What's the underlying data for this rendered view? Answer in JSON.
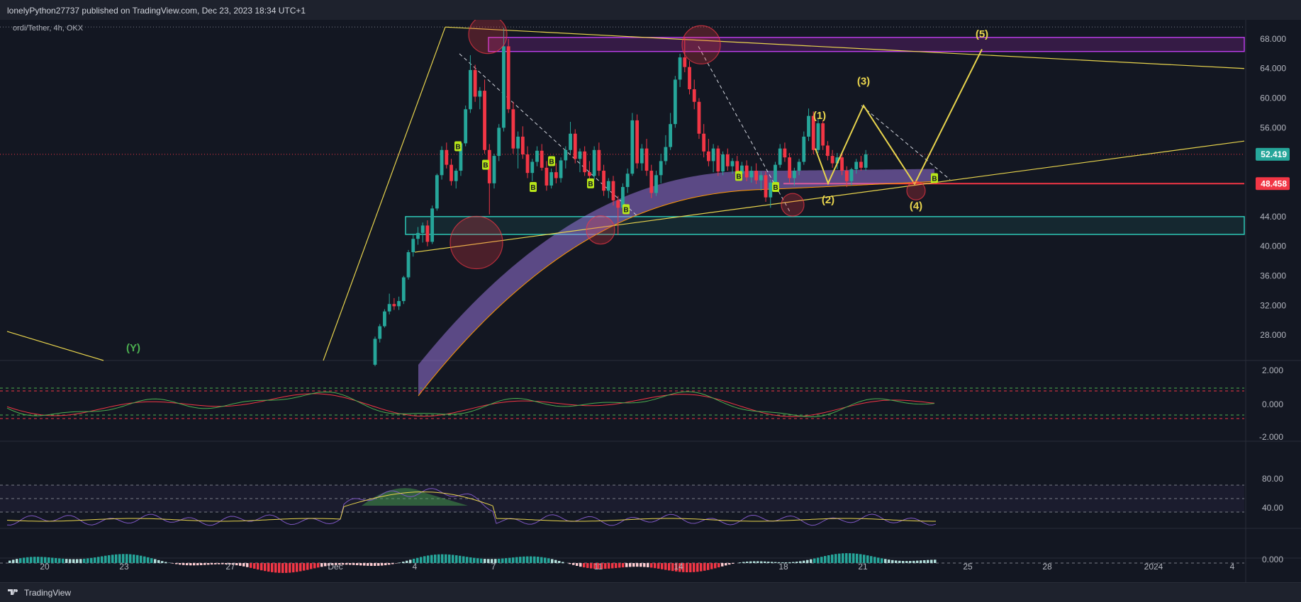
{
  "header": {
    "publish_text": "lonelyPython27737 published on TradingView.com, Dec 23, 2023 18:34 UTC+1"
  },
  "symbol": {
    "label": "ordi/Tether, 4h, OKX"
  },
  "footer": {
    "brand": "TradingView"
  },
  "colors": {
    "bull": "#26a69a",
    "bear": "#f23645",
    "fib": "#e8d44d",
    "magenta": "#c13ff0",
    "cyan": "#2fd3c0",
    "bg": "#131722"
  },
  "chart_data": {
    "type": "candlestick",
    "title": "ordi/Tether, 4h, OKX",
    "price_axis": {
      "ticks": [
        "68.000",
        "64.000",
        "60.000",
        "56.000",
        "52.000",
        "48.000",
        "44.000",
        "40.000",
        "36.000",
        "32.000",
        "28.000"
      ],
      "range": [
        24,
        70
      ]
    },
    "time_axis": {
      "ticks": [
        "20",
        "23",
        "27",
        "Dec",
        "4",
        "7",
        "11",
        "14",
        "18",
        "21",
        "25",
        "28",
        "2024",
        "4"
      ]
    },
    "current_price": "52.419",
    "support_level": "48.458",
    "zones": [
      {
        "name": "resistance-zone",
        "from": 66.3,
        "to": 68.2
      },
      {
        "name": "support-zone",
        "from": 41.6,
        "to": 44.0
      }
    ],
    "wave_labels": [
      "(1)",
      "(2)",
      "(3)",
      "(4)",
      "(5)",
      "(Y)"
    ],
    "candles": [
      {
        "t": "Dec 3 08",
        "o": 24.0,
        "h": 27.8,
        "l": 23.8,
        "c": 27.5
      },
      {
        "t": "Dec 3 12",
        "o": 27.5,
        "h": 29.5,
        "l": 27.0,
        "c": 29.2
      },
      {
        "t": "Dec 3 16",
        "o": 29.2,
        "h": 31.5,
        "l": 29.0,
        "c": 31.2
      },
      {
        "t": "Dec 3 20",
        "o": 31.2,
        "h": 33.6,
        "l": 30.8,
        "c": 32.2
      },
      {
        "t": "Dec 4 00",
        "o": 32.2,
        "h": 33.0,
        "l": 31.4,
        "c": 31.9
      },
      {
        "t": "Dec 4 04",
        "o": 31.9,
        "h": 33.2,
        "l": 31.4,
        "c": 32.6
      },
      {
        "t": "Dec 4 08",
        "o": 32.6,
        "h": 36.0,
        "l": 32.2,
        "c": 35.8
      },
      {
        "t": "Dec 4 12",
        "o": 35.8,
        "h": 39.5,
        "l": 35.5,
        "c": 39.2
      },
      {
        "t": "Dec 4 16",
        "o": 39.2,
        "h": 41.6,
        "l": 38.6,
        "c": 41.0
      },
      {
        "t": "Dec 4 20",
        "o": 41.0,
        "h": 42.6,
        "l": 40.2,
        "c": 41.8
      },
      {
        "t": "Dec 5 00",
        "o": 41.8,
        "h": 43.2,
        "l": 40.5,
        "c": 42.8
      },
      {
        "t": "Dec 5 04",
        "o": 42.8,
        "h": 43.5,
        "l": 40.0,
        "c": 40.6
      },
      {
        "t": "Dec 5 08",
        "o": 40.6,
        "h": 45.5,
        "l": 40.3,
        "c": 45.1
      },
      {
        "t": "Dec 5 12",
        "o": 45.1,
        "h": 49.8,
        "l": 44.8,
        "c": 49.6
      },
      {
        "t": "Dec 5 16",
        "o": 49.6,
        "h": 53.5,
        "l": 49.0,
        "c": 53.0
      },
      {
        "t": "Dec 5 20",
        "o": 53.0,
        "h": 54.0,
        "l": 50.5,
        "c": 51.0
      },
      {
        "t": "Dec 6 00",
        "o": 51.0,
        "h": 51.8,
        "l": 48.2,
        "c": 48.8
      },
      {
        "t": "Dec 6 04",
        "o": 48.8,
        "h": 50.5,
        "l": 47.8,
        "c": 50.2
      },
      {
        "t": "Dec 6 08",
        "o": 50.2,
        "h": 54.2,
        "l": 49.5,
        "c": 53.9
      },
      {
        "t": "Dec 6 12",
        "o": 53.9,
        "h": 59.0,
        "l": 53.5,
        "c": 58.5
      },
      {
        "t": "Dec 6 16",
        "o": 58.5,
        "h": 65.8,
        "l": 58.0,
        "c": 63.8
      },
      {
        "t": "Dec 6 20",
        "o": 63.8,
        "h": 64.5,
        "l": 59.5,
        "c": 60.2
      },
      {
        "t": "Dec 7 00",
        "o": 60.2,
        "h": 61.5,
        "l": 58.5,
        "c": 61.0
      },
      {
        "t": "Dec 7 04",
        "o": 61.0,
        "h": 62.5,
        "l": 52.5,
        "c": 53.0
      },
      {
        "t": "Dec 7 08",
        "o": 53.0,
        "h": 53.8,
        "l": 44.3,
        "c": 48.5
      },
      {
        "t": "Dec 7 12",
        "o": 48.5,
        "h": 52.5,
        "l": 47.8,
        "c": 52.2
      },
      {
        "t": "Dec 7 16",
        "o": 52.2,
        "h": 56.5,
        "l": 51.5,
        "c": 56.0
      },
      {
        "t": "Dec 7 20",
        "o": 56.0,
        "h": 69.5,
        "l": 55.5,
        "c": 67.0
      },
      {
        "t": "Dec 8 00",
        "o": 67.0,
        "h": 68.0,
        "l": 58.0,
        "c": 58.5
      },
      {
        "t": "Dec 8 04",
        "o": 58.5,
        "h": 59.5,
        "l": 52.5,
        "c": 53.2
      },
      {
        "t": "Dec 8 08",
        "o": 53.2,
        "h": 55.5,
        "l": 50.5,
        "c": 54.8
      },
      {
        "t": "Dec 8 12",
        "o": 54.8,
        "h": 56.2,
        "l": 51.8,
        "c": 52.4
      },
      {
        "t": "Dec 8 16",
        "o": 52.4,
        "h": 53.5,
        "l": 49.2,
        "c": 49.9
      },
      {
        "t": "Dec 8 20",
        "o": 49.9,
        "h": 51.8,
        "l": 48.8,
        "c": 51.4
      },
      {
        "t": "Dec 9 00",
        "o": 51.4,
        "h": 53.5,
        "l": 50.8,
        "c": 52.9
      },
      {
        "t": "Dec 9 04",
        "o": 52.9,
        "h": 53.8,
        "l": 50.2,
        "c": 50.6
      },
      {
        "t": "Dec 9 08",
        "o": 50.6,
        "h": 51.5,
        "l": 47.5,
        "c": 48.2
      },
      {
        "t": "Dec 9 12",
        "o": 48.2,
        "h": 50.5,
        "l": 47.8,
        "c": 50.0
      },
      {
        "t": "Dec 9 16",
        "o": 50.0,
        "h": 51.2,
        "l": 48.5,
        "c": 49.2
      },
      {
        "t": "Dec 9 20",
        "o": 49.2,
        "h": 52.0,
        "l": 48.6,
        "c": 51.6
      },
      {
        "t": "Dec 10 00",
        "o": 51.6,
        "h": 53.5,
        "l": 50.5,
        "c": 53.0
      },
      {
        "t": "Dec 10 04",
        "o": 53.0,
        "h": 56.8,
        "l": 52.5,
        "c": 55.2
      },
      {
        "t": "Dec 10 08",
        "o": 55.2,
        "h": 55.8,
        "l": 51.2,
        "c": 51.8
      },
      {
        "t": "Dec 10 12",
        "o": 51.8,
        "h": 53.2,
        "l": 50.0,
        "c": 52.8
      },
      {
        "t": "Dec 10 16",
        "o": 52.8,
        "h": 53.5,
        "l": 49.5,
        "c": 50.0
      },
      {
        "t": "Dec 10 20",
        "o": 50.0,
        "h": 51.5,
        "l": 48.5,
        "c": 49.5
      },
      {
        "t": "Dec 11 00",
        "o": 49.5,
        "h": 53.5,
        "l": 49.0,
        "c": 53.0
      },
      {
        "t": "Dec 11 04",
        "o": 53.0,
        "h": 54.0,
        "l": 49.5,
        "c": 50.2
      },
      {
        "t": "Dec 11 08",
        "o": 50.2,
        "h": 51.0,
        "l": 46.8,
        "c": 47.5
      },
      {
        "t": "Dec 11 12",
        "o": 47.5,
        "h": 49.2,
        "l": 46.5,
        "c": 48.8
      },
      {
        "t": "Dec 11 16",
        "o": 48.8,
        "h": 49.5,
        "l": 45.5,
        "c": 46.2
      },
      {
        "t": "Dec 11 20",
        "o": 46.2,
        "h": 46.8,
        "l": 41.5,
        "c": 45.2
      },
      {
        "t": "Dec 12 00",
        "o": 45.2,
        "h": 48.5,
        "l": 44.8,
        "c": 48.0
      },
      {
        "t": "Dec 12 04",
        "o": 48.0,
        "h": 50.5,
        "l": 47.2,
        "c": 49.8
      },
      {
        "t": "Dec 12 08",
        "o": 49.8,
        "h": 58.0,
        "l": 49.5,
        "c": 57.0
      },
      {
        "t": "Dec 12 12",
        "o": 57.0,
        "h": 57.8,
        "l": 50.5,
        "c": 51.2
      },
      {
        "t": "Dec 12 16",
        "o": 51.2,
        "h": 53.8,
        "l": 50.2,
        "c": 53.2
      },
      {
        "t": "Dec 12 20",
        "o": 53.2,
        "h": 54.5,
        "l": 49.5,
        "c": 50.2
      },
      {
        "t": "Dec 13 00",
        "o": 50.2,
        "h": 51.0,
        "l": 46.5,
        "c": 47.2
      },
      {
        "t": "Dec 13 04",
        "o": 47.2,
        "h": 50.2,
        "l": 46.8,
        "c": 49.6
      },
      {
        "t": "Dec 13 08",
        "o": 49.6,
        "h": 52.5,
        "l": 48.5,
        "c": 51.5
      },
      {
        "t": "Dec 13 12",
        "o": 51.5,
        "h": 55.0,
        "l": 51.0,
        "c": 53.4
      },
      {
        "t": "Dec 13 16",
        "o": 53.4,
        "h": 58.0,
        "l": 53.0,
        "c": 56.5
      },
      {
        "t": "Dec 13 20",
        "o": 56.5,
        "h": 63.0,
        "l": 56.0,
        "c": 62.5
      },
      {
        "t": "Dec 14 00",
        "o": 62.5,
        "h": 66.0,
        "l": 61.5,
        "c": 65.5
      },
      {
        "t": "Dec 14 04",
        "o": 65.5,
        "h": 68.2,
        "l": 63.5,
        "c": 64.2
      },
      {
        "t": "Dec 14 08",
        "o": 64.2,
        "h": 65.0,
        "l": 60.5,
        "c": 61.2
      },
      {
        "t": "Dec 14 12",
        "o": 61.2,
        "h": 62.5,
        "l": 58.5,
        "c": 59.5
      },
      {
        "t": "Dec 14 16",
        "o": 59.5,
        "h": 60.0,
        "l": 54.5,
        "c": 55.2
      },
      {
        "t": "Dec 14 20",
        "o": 55.2,
        "h": 56.5,
        "l": 52.0,
        "c": 52.8
      },
      {
        "t": "Dec 15 00",
        "o": 52.8,
        "h": 54.5,
        "l": 50.8,
        "c": 51.5
      },
      {
        "t": "Dec 15 04",
        "o": 51.5,
        "h": 53.8,
        "l": 50.0,
        "c": 53.2
      },
      {
        "t": "Dec 15 08",
        "o": 53.2,
        "h": 53.6,
        "l": 49.5,
        "c": 50.1
      },
      {
        "t": "Dec 15 12",
        "o": 50.1,
        "h": 52.8,
        "l": 49.6,
        "c": 52.4
      },
      {
        "t": "Dec 15 16",
        "o": 52.4,
        "h": 53.2,
        "l": 50.2,
        "c": 50.8
      },
      {
        "t": "Dec 15 20",
        "o": 50.8,
        "h": 51.9,
        "l": 49.8,
        "c": 51.5
      },
      {
        "t": "Dec 16 00",
        "o": 51.5,
        "h": 52.2,
        "l": 49.2,
        "c": 49.8
      },
      {
        "t": "Dec 16 04",
        "o": 49.8,
        "h": 51.4,
        "l": 49.3,
        "c": 50.9
      },
      {
        "t": "Dec 16 08",
        "o": 50.9,
        "h": 51.6,
        "l": 48.8,
        "c": 49.3
      },
      {
        "t": "Dec 16 12",
        "o": 49.3,
        "h": 50.8,
        "l": 48.6,
        "c": 50.2
      },
      {
        "t": "Dec 16 16",
        "o": 50.2,
        "h": 51.2,
        "l": 48.4,
        "c": 48.9
      },
      {
        "t": "Dec 16 20",
        "o": 48.9,
        "h": 50.1,
        "l": 47.5,
        "c": 49.6
      },
      {
        "t": "Dec 17 00",
        "o": 49.6,
        "h": 50.1,
        "l": 46.0,
        "c": 46.6
      },
      {
        "t": "Dec 17 04",
        "o": 46.6,
        "h": 49.0,
        "l": 45.2,
        "c": 48.6
      },
      {
        "t": "Dec 17 08",
        "o": 48.6,
        "h": 51.4,
        "l": 48.2,
        "c": 51.0
      },
      {
        "t": "Dec 17 12",
        "o": 51.0,
        "h": 53.8,
        "l": 50.6,
        "c": 53.2
      },
      {
        "t": "Dec 17 16",
        "o": 53.2,
        "h": 54.0,
        "l": 51.4,
        "c": 52.0
      },
      {
        "t": "Dec 17 20",
        "o": 52.0,
        "h": 52.6,
        "l": 48.6,
        "c": 49.2
      },
      {
        "t": "Dec 18 00",
        "o": 49.2,
        "h": 50.6,
        "l": 48.2,
        "c": 50.2
      },
      {
        "t": "Dec 18 04",
        "o": 50.2,
        "h": 51.8,
        "l": 49.6,
        "c": 51.4
      },
      {
        "t": "Dec 18 08",
        "o": 51.4,
        "h": 55.5,
        "l": 51.0,
        "c": 54.8
      },
      {
        "t": "Dec 18 12",
        "o": 54.8,
        "h": 58.6,
        "l": 54.2,
        "c": 57.6
      },
      {
        "t": "Dec 18 16",
        "o": 57.6,
        "h": 58.2,
        "l": 52.4,
        "c": 53.0
      },
      {
        "t": "Dec 18 20",
        "o": 53.0,
        "h": 57.2,
        "l": 52.6,
        "c": 56.6
      },
      {
        "t": "Dec 19 00",
        "o": 56.6,
        "h": 57.0,
        "l": 53.0,
        "c": 53.6
      },
      {
        "t": "Dec 19 04",
        "o": 53.6,
        "h": 54.2,
        "l": 51.6,
        "c": 52.2
      },
      {
        "t": "Dec 19 08",
        "o": 52.2,
        "h": 53.0,
        "l": 50.6,
        "c": 51.2
      },
      {
        "t": "Dec 19 12",
        "o": 51.2,
        "h": 52.6,
        "l": 50.4,
        "c": 52.0
      },
      {
        "t": "Dec 19 16",
        "o": 52.0,
        "h": 52.4,
        "l": 49.6,
        "c": 50.2
      },
      {
        "t": "Dec 19 20",
        "o": 50.2,
        "h": 50.8,
        "l": 48.0,
        "c": 48.8
      },
      {
        "t": "Dec 20 00",
        "o": 48.8,
        "h": 50.6,
        "l": 48.2,
        "c": 50.4
      },
      {
        "t": "Dec 20 04",
        "o": 50.4,
        "h": 51.8,
        "l": 49.8,
        "c": 51.4
      },
      {
        "t": "Dec 20 08",
        "o": 51.4,
        "h": 52.2,
        "l": 50.2,
        "c": 50.6
      },
      {
        "t": "Dec 20 12",
        "o": 50.6,
        "h": 53.0,
        "l": 50.2,
        "c": 52.419
      }
    ]
  },
  "oscillators": [
    {
      "name": "stoch-panel",
      "ticks": [
        "2.000",
        "0.000",
        "-2.000"
      ]
    },
    {
      "name": "rsi-panel",
      "ticks": [
        "80.00",
        "40.00"
      ]
    },
    {
      "name": "macd-panel",
      "ticks": [
        "0.000"
      ]
    }
  ]
}
